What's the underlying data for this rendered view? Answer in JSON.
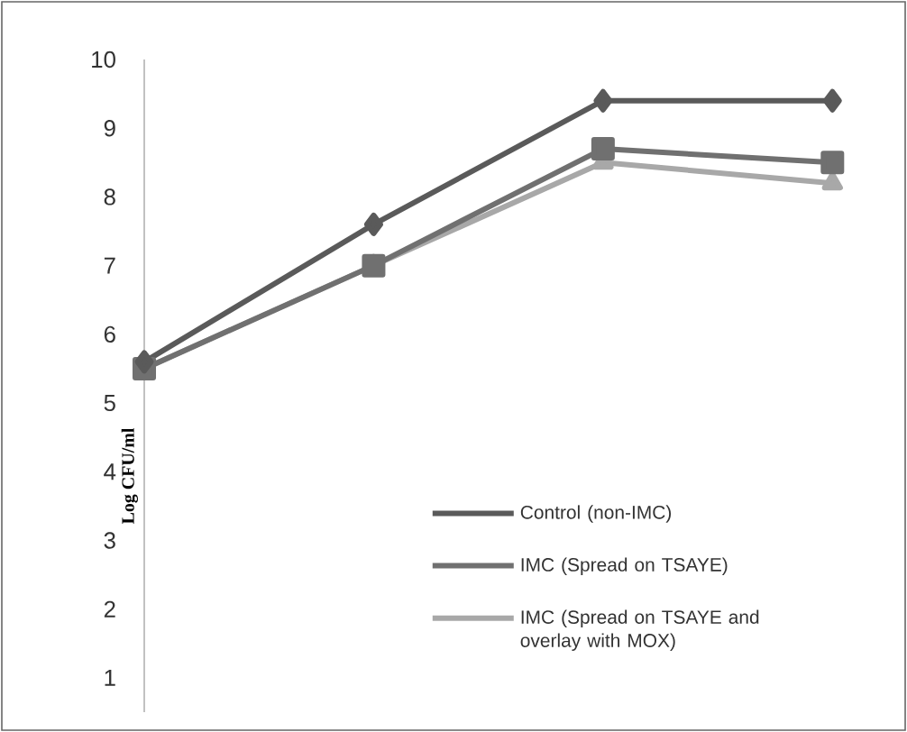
{
  "chart_data": {
    "type": "line",
    "ylabel": "Log CFU/ml",
    "categories": [
      null,
      null,
      null,
      null
    ],
    "ylim": [
      0.5,
      10
    ],
    "yticks": [
      1,
      2,
      3,
      4,
      5,
      6,
      7,
      8,
      9,
      10
    ],
    "grid": false,
    "legend": "right",
    "line_style": "solid",
    "tick_labels": "y",
    "series": [
      {
        "name": "Control (non-IMC)",
        "color": "#5a5a5a",
        "marker": "diamond",
        "values": [
          5.6,
          7.6,
          9.4,
          9.4
        ]
      },
      {
        "name": "IMC (Spread on TSAYE)",
        "color": "#707070",
        "marker": "square",
        "values": [
          5.5,
          7.0,
          8.7,
          8.5
        ]
      },
      {
        "name": "IMC (Spread on TSAYE and overlay with MOX)",
        "color": "#a8a8a8",
        "marker": "triangle",
        "values": [
          5.5,
          7.0,
          8.5,
          8.2
        ]
      }
    ]
  }
}
